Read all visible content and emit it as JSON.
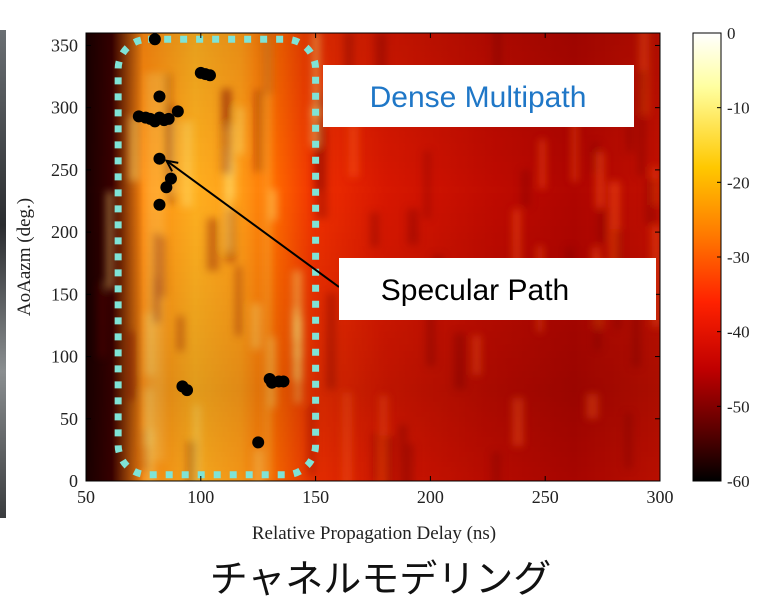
{
  "chart_data": {
    "type": "heatmap",
    "xlabel": "Relative Propagation Delay (ns)",
    "ylabel": "AoAazm (deg.)",
    "xlim": [
      50,
      300
    ],
    "ylim": [
      0,
      360
    ],
    "xticks": [
      "50",
      "100",
      "150",
      "200",
      "250",
      "300"
    ],
    "yticks": [
      "0",
      "50",
      "100",
      "150",
      "200",
      "250",
      "300",
      "350"
    ],
    "colorbar": {
      "range": [
        -60,
        0
      ],
      "ticks": [
        "0",
        "-10",
        "-20",
        "-30",
        "-40",
        "-50",
        "-60"
      ],
      "colormap": "hot"
    },
    "scatter_points": [
      {
        "x": 80,
        "y": 355
      },
      {
        "x": 100,
        "y": 328
      },
      {
        "x": 102,
        "y": 327
      },
      {
        "x": 104,
        "y": 326
      },
      {
        "x": 73,
        "y": 293
      },
      {
        "x": 76,
        "y": 292
      },
      {
        "x": 78,
        "y": 291
      },
      {
        "x": 80,
        "y": 289
      },
      {
        "x": 82,
        "y": 292
      },
      {
        "x": 84,
        "y": 290
      },
      {
        "x": 86,
        "y": 291
      },
      {
        "x": 82,
        "y": 309
      },
      {
        "x": 90,
        "y": 297
      },
      {
        "x": 82,
        "y": 259
      },
      {
        "x": 87,
        "y": 243
      },
      {
        "x": 85,
        "y": 236
      },
      {
        "x": 82,
        "y": 222
      },
      {
        "x": 92,
        "y": 76
      },
      {
        "x": 94,
        "y": 73
      },
      {
        "x": 130,
        "y": 82
      },
      {
        "x": 131,
        "y": 79
      },
      {
        "x": 134,
        "y": 80
      },
      {
        "x": 136,
        "y": 80
      },
      {
        "x": 125,
        "y": 31
      }
    ],
    "annotations": [
      {
        "text": "Dense Multipath",
        "color": "#1f77c7"
      },
      {
        "text": "Specular Path",
        "color": "#000000",
        "arrow_to": {
          "x": 82,
          "y": 259
        }
      }
    ],
    "highlight_region": {
      "x": [
        64,
        150
      ],
      "y": [
        5,
        355
      ],
      "color": "#7fe3d6"
    }
  },
  "caption": "チャネルモデリング"
}
